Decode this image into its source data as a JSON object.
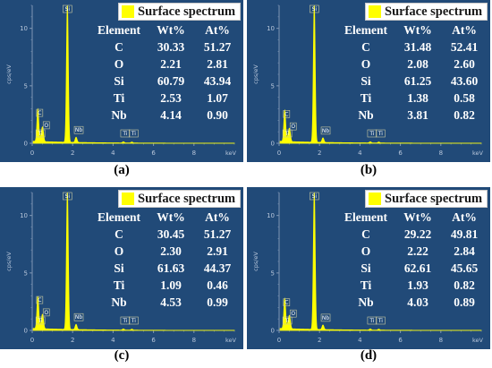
{
  "figure": {
    "chart_data": [
      {
        "type": "line",
        "panel_label": "(a)",
        "legend": "Surface spectrum",
        "xlabel": "keV",
        "ylabel": "cps/eV",
        "xlim": [
          0,
          10
        ],
        "ylim": [
          0,
          12
        ],
        "xticks": [
          0,
          2,
          4,
          6,
          8
        ],
        "yticks": [
          0,
          5,
          10
        ],
        "peaks": [
          {
            "label": "C",
            "energy": 0.28,
            "height": 2.8
          },
          {
            "label": "O",
            "energy": 0.52,
            "height": 1.1
          },
          {
            "label": "Ti",
            "energy": 0.45,
            "height": 0.5
          },
          {
            "label": "Si",
            "energy": 1.74,
            "height": 12.0
          },
          {
            "label": "Nb",
            "energy": 2.17,
            "height": 0.45
          },
          {
            "label": "Ti",
            "energy": 4.51,
            "height": 0.1
          },
          {
            "label": "Ti",
            "energy": 4.93,
            "height": 0.08
          }
        ],
        "table": {
          "headers": [
            "Element",
            "Wt%",
            "At%"
          ],
          "rows": [
            [
              "C",
              "30.33",
              "51.27"
            ],
            [
              "O",
              "2.21",
              "2.81"
            ],
            [
              "Si",
              "60.79",
              "43.94"
            ],
            [
              "Ti",
              "2.53",
              "1.07"
            ],
            [
              "Nb",
              "4.14",
              "0.90"
            ]
          ]
        }
      },
      {
        "type": "line",
        "panel_label": "(b)",
        "legend": "Surface spectrum",
        "xlabel": "keV",
        "ylabel": "cps/eV",
        "xlim": [
          0,
          10
        ],
        "ylim": [
          0,
          12
        ],
        "xticks": [
          0,
          2,
          4,
          6,
          8
        ],
        "yticks": [
          0,
          5,
          10
        ],
        "peaks": [
          {
            "label": "C",
            "energy": 0.28,
            "height": 2.7
          },
          {
            "label": "O",
            "energy": 0.52,
            "height": 1.0
          },
          {
            "label": "Ti",
            "energy": 0.45,
            "height": 0.45
          },
          {
            "label": "Si",
            "energy": 1.74,
            "height": 12.0
          },
          {
            "label": "Nb",
            "energy": 2.17,
            "height": 0.4
          },
          {
            "label": "Ti",
            "energy": 4.51,
            "height": 0.1
          },
          {
            "label": "Ti",
            "energy": 4.93,
            "height": 0.08
          }
        ],
        "table": {
          "headers": [
            "Element",
            "Wt%",
            "At%"
          ],
          "rows": [
            [
              "C",
              "31.48",
              "52.41"
            ],
            [
              "O",
              "2.08",
              "2.60"
            ],
            [
              "Si",
              "61.25",
              "43.60"
            ],
            [
              "Ti",
              "1.38",
              "0.58"
            ],
            [
              "Nb",
              "3.81",
              "0.82"
            ]
          ]
        }
      },
      {
        "type": "line",
        "panel_label": "(c)",
        "legend": "Surface spectrum",
        "xlabel": "keV",
        "ylabel": "cps/eV",
        "xlim": [
          0,
          10
        ],
        "ylim": [
          0,
          12
        ],
        "xticks": [
          0,
          2,
          4,
          6,
          8
        ],
        "yticks": [
          0,
          5,
          10
        ],
        "peaks": [
          {
            "label": "C",
            "energy": 0.28,
            "height": 2.8
          },
          {
            "label": "O",
            "energy": 0.52,
            "height": 1.1
          },
          {
            "label": "Ti",
            "energy": 0.45,
            "height": 0.45
          },
          {
            "label": "Si",
            "energy": 1.74,
            "height": 12.0
          },
          {
            "label": "Nb",
            "energy": 2.17,
            "height": 0.45
          },
          {
            "label": "Ti",
            "energy": 4.51,
            "height": 0.1
          },
          {
            "label": "Ti",
            "energy": 4.93,
            "height": 0.08
          }
        ],
        "table": {
          "headers": [
            "Element",
            "Wt%",
            "At%"
          ],
          "rows": [
            [
              "C",
              "30.45",
              "51.27"
            ],
            [
              "O",
              "2.30",
              "2.91"
            ],
            [
              "Si",
              "61.63",
              "44.37"
            ],
            [
              "Ti",
              "1.09",
              "0.46"
            ],
            [
              "Nb",
              "4.53",
              "0.99"
            ]
          ]
        }
      },
      {
        "type": "line",
        "panel_label": "(d)",
        "legend": "Surface spectrum",
        "xlabel": "keV",
        "ylabel": "cps/eV",
        "xlim": [
          0,
          10
        ],
        "ylim": [
          0,
          12
        ],
        "xticks": [
          0,
          2,
          4,
          6,
          8
        ],
        "yticks": [
          0,
          5,
          10
        ],
        "peaks": [
          {
            "label": "C",
            "energy": 0.28,
            "height": 2.6
          },
          {
            "label": "O",
            "energy": 0.52,
            "height": 1.0
          },
          {
            "label": "Ti",
            "energy": 0.45,
            "height": 0.45
          },
          {
            "label": "Si",
            "energy": 1.74,
            "height": 12.0
          },
          {
            "label": "Nb",
            "energy": 2.17,
            "height": 0.4
          },
          {
            "label": "Ti",
            "energy": 4.51,
            "height": 0.1
          },
          {
            "label": "Ti",
            "energy": 4.93,
            "height": 0.08
          }
        ],
        "table": {
          "headers": [
            "Element",
            "Wt%",
            "At%"
          ],
          "rows": [
            [
              "C",
              "29.22",
              "49.81"
            ],
            [
              "O",
              "2.22",
              "2.84"
            ],
            [
              "Si",
              "62.61",
              "45.65"
            ],
            [
              "Ti",
              "1.93",
              "0.82"
            ],
            [
              "Nb",
              "4.03",
              "0.89"
            ]
          ]
        }
      }
    ]
  },
  "colors": {
    "panel_background": "#214a78",
    "panel_background_inner": "#1d4270",
    "spectrum": "#ffff00",
    "axis": "#7f95b3",
    "tick_text": "#b9c7db",
    "table_text": "#ffffff"
  }
}
